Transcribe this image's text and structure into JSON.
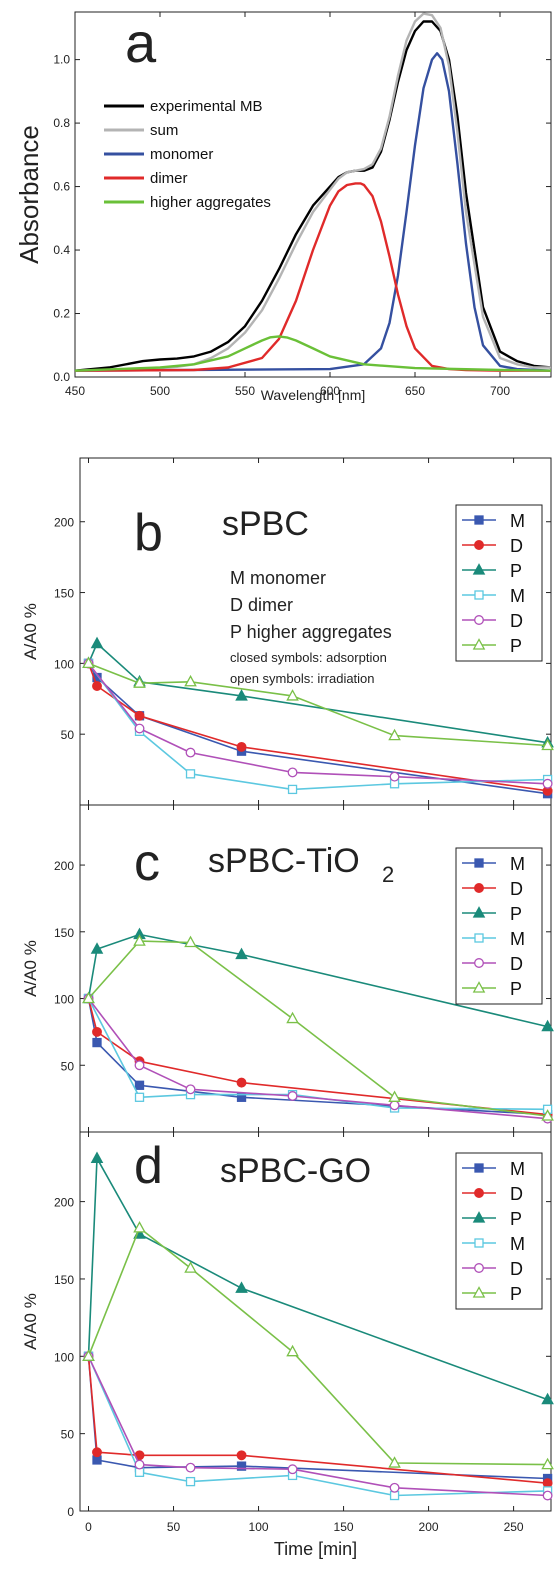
{
  "chart_data": [
    {
      "type": "line",
      "panel_letter": "a",
      "xlabel": "Wavelength [nm]",
      "ylabel": "Absorbance",
      "xlim": [
        450,
        730
      ],
      "ylim": [
        0,
        1.15
      ],
      "xticks": [
        "450",
        "500",
        "550",
        "600",
        "650",
        "700"
      ],
      "yticks": [
        "0.0",
        "0.2",
        "0.4",
        "0.6",
        "0.8",
        "1.0"
      ],
      "legend_position": "left",
      "series": [
        {
          "name": "experimental MB",
          "color": "#000000",
          "x": [
            450,
            470,
            490,
            500,
            510,
            520,
            530,
            540,
            550,
            560,
            570,
            580,
            590,
            600,
            605,
            610,
            615,
            620,
            625,
            630,
            635,
            640,
            645,
            650,
            655,
            660,
            665,
            670,
            675,
            680,
            690,
            700,
            710,
            720,
            730
          ],
          "y": [
            0.02,
            0.03,
            0.05,
            0.055,
            0.058,
            0.065,
            0.08,
            0.11,
            0.16,
            0.24,
            0.34,
            0.45,
            0.54,
            0.6,
            0.63,
            0.645,
            0.65,
            0.65,
            0.66,
            0.71,
            0.81,
            0.93,
            1.03,
            1.09,
            1.12,
            1.12,
            1.09,
            1.0,
            0.82,
            0.58,
            0.22,
            0.08,
            0.05,
            0.035,
            0.03
          ]
        },
        {
          "name": "sum",
          "color": "#b4b4b4",
          "x": [
            450,
            470,
            490,
            500,
            510,
            520,
            530,
            540,
            550,
            560,
            570,
            580,
            590,
            600,
            605,
            610,
            615,
            620,
            625,
            630,
            635,
            640,
            645,
            650,
            655,
            660,
            665,
            670,
            675,
            680,
            690,
            700,
            710,
            720,
            730
          ],
          "y": [
            0.02,
            0.022,
            0.025,
            0.028,
            0.032,
            0.04,
            0.06,
            0.09,
            0.14,
            0.21,
            0.31,
            0.42,
            0.52,
            0.59,
            0.625,
            0.645,
            0.65,
            0.655,
            0.67,
            0.72,
            0.82,
            0.95,
            1.06,
            1.12,
            1.145,
            1.14,
            1.1,
            0.98,
            0.77,
            0.52,
            0.19,
            0.06,
            0.04,
            0.03,
            0.03
          ]
        },
        {
          "name": "monomer",
          "color": "#3550a0",
          "x": [
            450,
            600,
            620,
            630,
            635,
            640,
            645,
            650,
            655,
            660,
            663,
            666,
            670,
            675,
            680,
            685,
            690,
            700,
            710,
            730
          ],
          "y": [
            0.02,
            0.025,
            0.04,
            0.09,
            0.17,
            0.32,
            0.52,
            0.73,
            0.91,
            1.0,
            1.02,
            1.0,
            0.9,
            0.67,
            0.42,
            0.22,
            0.1,
            0.035,
            0.025,
            0.02
          ]
        },
        {
          "name": "dimer",
          "color": "#e02a2a",
          "x": [
            450,
            520,
            540,
            560,
            570,
            580,
            590,
            600,
            605,
            610,
            615,
            618,
            620,
            625,
            630,
            635,
            640,
            645,
            650,
            660,
            670,
            680,
            700,
            730
          ],
          "y": [
            0.02,
            0.022,
            0.03,
            0.06,
            0.12,
            0.24,
            0.4,
            0.54,
            0.585,
            0.605,
            0.61,
            0.61,
            0.605,
            0.57,
            0.49,
            0.38,
            0.26,
            0.16,
            0.09,
            0.035,
            0.025,
            0.022,
            0.02,
            0.02
          ]
        },
        {
          "name": "higher aggregates",
          "color": "#6ac038",
          "x": [
            450,
            500,
            520,
            540,
            550,
            560,
            565,
            570,
            575,
            580,
            590,
            600,
            620,
            650,
            700,
            730
          ],
          "y": [
            0.02,
            0.03,
            0.04,
            0.065,
            0.09,
            0.115,
            0.125,
            0.128,
            0.124,
            0.115,
            0.09,
            0.065,
            0.04,
            0.028,
            0.022,
            0.02
          ]
        }
      ]
    },
    {
      "type": "line",
      "panel_letter": "b",
      "sample_title": "sPBC",
      "ylabel": "A/A0 %",
      "xlim": [
        -5,
        272
      ],
      "ylim": [
        0,
        245
      ],
      "yticks": [
        "50",
        "100",
        "150",
        "200"
      ],
      "annotations": [
        {
          "text": "M monomer",
          "color": "#3a58b0"
        },
        {
          "text": "D dimer",
          "color": "#e02a2a"
        },
        {
          "text": "P higher aggregates",
          "color": "#6ac038"
        },
        {
          "text": "closed symbols: adsorption",
          "color": "#111111"
        },
        {
          "text": "open symbols: irradiation",
          "color": "#111111"
        }
      ],
      "legend_position": "top-right",
      "series": [
        {
          "name": "M",
          "color": "#3a58b0",
          "marker": "square",
          "filled": true,
          "x": [
            0,
            5,
            30,
            90,
            270
          ],
          "y": [
            100,
            90,
            63,
            38,
            8
          ]
        },
        {
          "name": "D",
          "color": "#e02a2a",
          "marker": "circle",
          "filled": true,
          "x": [
            0,
            5,
            30,
            90,
            270
          ],
          "y": [
            100,
            84,
            63,
            41,
            10
          ]
        },
        {
          "name": "P",
          "color": "#1a8a7a",
          "marker": "triangle",
          "filled": true,
          "x": [
            0,
            5,
            30,
            90,
            270
          ],
          "y": [
            100,
            114,
            87,
            77,
            44
          ]
        },
        {
          "name": "M",
          "color": "#5cc8e0",
          "marker": "square",
          "filled": false,
          "x": [
            0,
            30,
            60,
            120,
            180,
            270
          ],
          "y": [
            100,
            52,
            22,
            11,
            15,
            18
          ]
        },
        {
          "name": "D",
          "color": "#b050b8",
          "marker": "circle",
          "filled": false,
          "x": [
            0,
            30,
            60,
            120,
            180,
            270
          ],
          "y": [
            100,
            54,
            37,
            23,
            20,
            15
          ]
        },
        {
          "name": "P",
          "color": "#7ac048",
          "marker": "triangle",
          "filled": false,
          "x": [
            0,
            30,
            60,
            120,
            180,
            270
          ],
          "y": [
            100,
            86,
            87,
            77,
            49,
            42
          ]
        }
      ]
    },
    {
      "type": "line",
      "panel_letter": "c",
      "sample_title_main": "sPBC-TiO",
      "sample_title_sub": "2",
      "ylabel": "A/A0 %",
      "xlim": [
        -5,
        272
      ],
      "ylim": [
        0,
        245
      ],
      "yticks": [
        "50",
        "100",
        "150",
        "200"
      ],
      "legend_position": "top-right",
      "series": [
        {
          "name": "M",
          "color": "#3a58b0",
          "marker": "square",
          "filled": true,
          "x": [
            0,
            5,
            30,
            90,
            270
          ],
          "y": [
            100,
            67,
            35,
            26,
            13
          ]
        },
        {
          "name": "D",
          "color": "#e02a2a",
          "marker": "circle",
          "filled": true,
          "x": [
            0,
            5,
            30,
            90,
            270
          ],
          "y": [
            100,
            75,
            53,
            37,
            13
          ]
        },
        {
          "name": "P",
          "color": "#1a8a7a",
          "marker": "triangle",
          "filled": true,
          "x": [
            0,
            5,
            30,
            90,
            270
          ],
          "y": [
            100,
            137,
            148,
            133,
            79
          ]
        },
        {
          "name": "M",
          "color": "#5cc8e0",
          "marker": "square",
          "filled": false,
          "x": [
            0,
            30,
            60,
            120,
            180,
            270
          ],
          "y": [
            100,
            26,
            28,
            28,
            18,
            17
          ]
        },
        {
          "name": "D",
          "color": "#b050b8",
          "marker": "circle",
          "filled": false,
          "x": [
            0,
            30,
            60,
            120,
            180,
            270
          ],
          "y": [
            100,
            50,
            32,
            27,
            20,
            10
          ]
        },
        {
          "name": "P",
          "color": "#7ac048",
          "marker": "triangle",
          "filled": false,
          "x": [
            0,
            30,
            60,
            120,
            180,
            270
          ],
          "y": [
            100,
            143,
            142,
            85,
            26,
            12
          ]
        }
      ]
    },
    {
      "type": "line",
      "panel_letter": "d",
      "sample_title": "sPBC-GO",
      "xlabel": "Time [min]",
      "ylabel": "A/A0 %",
      "xlim": [
        -5,
        272
      ],
      "ylim": [
        0,
        245
      ],
      "xticks": [
        "0",
        "50",
        "100",
        "150",
        "200",
        "250"
      ],
      "yticks": [
        "0",
        "50",
        "100",
        "150",
        "200"
      ],
      "legend_position": "top-right",
      "series": [
        {
          "name": "M",
          "color": "#3a58b0",
          "marker": "square",
          "filled": true,
          "x": [
            0,
            5,
            30,
            90,
            270
          ],
          "y": [
            100,
            33,
            28,
            29,
            21
          ]
        },
        {
          "name": "D",
          "color": "#e02a2a",
          "marker": "circle",
          "filled": true,
          "x": [
            0,
            5,
            30,
            90,
            270
          ],
          "y": [
            100,
            38,
            36,
            36,
            18
          ]
        },
        {
          "name": "P",
          "color": "#1a8a7a",
          "marker": "triangle",
          "filled": true,
          "x": [
            0,
            5,
            30,
            90,
            270
          ],
          "y": [
            100,
            228,
            179,
            144,
            72
          ]
        },
        {
          "name": "M",
          "color": "#5cc8e0",
          "marker": "square",
          "filled": false,
          "x": [
            0,
            30,
            60,
            120,
            180,
            270
          ],
          "y": [
            100,
            25,
            19,
            23,
            10,
            13
          ]
        },
        {
          "name": "D",
          "color": "#b050b8",
          "marker": "circle",
          "filled": false,
          "x": [
            0,
            30,
            60,
            120,
            180,
            270
          ],
          "y": [
            100,
            30,
            28,
            27,
            15,
            10
          ]
        },
        {
          "name": "P",
          "color": "#7ac048",
          "marker": "triangle",
          "filled": false,
          "x": [
            0,
            30,
            60,
            120,
            180,
            270
          ],
          "y": [
            100,
            183,
            157,
            103,
            31,
            30
          ]
        }
      ]
    }
  ]
}
